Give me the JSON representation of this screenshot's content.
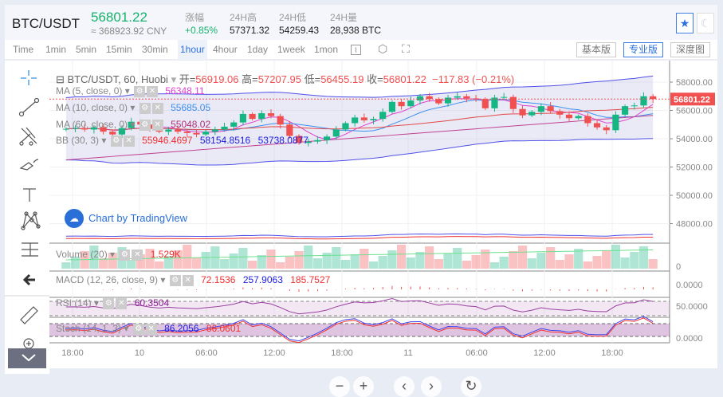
{
  "header": {
    "symbol": "BTC/USDT",
    "price": "56801.22",
    "cny": "≈ 368923.92 CNY",
    "stats": [
      {
        "label": "涨幅",
        "value": "+0.85%",
        "color": "#16b26c"
      },
      {
        "label": "24H高",
        "value": "57371.32"
      },
      {
        "label": "24H低",
        "value": "54259.43"
      },
      {
        "label": "24H量",
        "value": "28,938 BTC"
      }
    ],
    "favorite_icon": "star-icon",
    "theme_icon": "moon-icon"
  },
  "toolbar": {
    "intervals": [
      "Time",
      "1min",
      "5min",
      "15min",
      "30min",
      "1hour",
      "4hour",
      "1day",
      "1week",
      "1mon"
    ],
    "active": "1hour",
    "icons": [
      "indicator-icon",
      "settings-icon",
      "fullscreen-icon"
    ],
    "views": [
      "基本版",
      "专业版",
      "深度图"
    ],
    "active_view": "专业版"
  },
  "left_tools": [
    "crosshair-icon",
    "trend-line-icon",
    "pitchfork-icon",
    "brush-icon",
    "text-icon",
    "pattern-icon",
    "measure-icon",
    "back-arrow-icon",
    "ruler-icon",
    "zoom-in-icon",
    "chevron-down-icon"
  ],
  "legend": {
    "title": "BTC/USDT, 60, Huobi",
    "open_label": "开=",
    "open": "56919.06",
    "high_label": "高=",
    "high": "57207.95",
    "low_label": "低=",
    "low": "56455.19",
    "close_label": "收=",
    "close": "56801.22",
    "change": "−117.83 (−0.21%)"
  },
  "indicators": [
    {
      "name": "MA (5, close, 0)",
      "values": [
        "56348.11"
      ],
      "colors": [
        "#e040d0"
      ]
    },
    {
      "name": "MA (10, close, 0)",
      "values": [
        "55685.05"
      ],
      "colors": [
        "#3d8ef0"
      ]
    },
    {
      "name": "MA (60, close, 0)",
      "values": [
        "55048.02"
      ],
      "colors": [
        "#b0307a"
      ]
    },
    {
      "name": "BB (30, 3)",
      "values": [
        "55946.4697",
        "58154.8516",
        "53738.0877"
      ],
      "colors": [
        "#f03030",
        "#2020e0",
        "#2020e0"
      ]
    },
    {
      "name": "Volume (20)",
      "values": [
        "1.529K"
      ],
      "colors": [
        "#f03030"
      ]
    },
    {
      "name": "MACD (12, 26, close, 9)",
      "values": [
        "72.1536",
        "257.9063",
        "185.7527"
      ],
      "colors": [
        "#f03030",
        "#2020e0",
        "#f03030"
      ]
    },
    {
      "name": "RSI (14)",
      "values": [
        "60.3504"
      ],
      "colors": [
        "#8a2090"
      ]
    },
    {
      "name": "Stoch (14, 1, 3)",
      "values": [
        "86.2056",
        "86.0601"
      ],
      "colors": [
        "#2020e0",
        "#f03030"
      ]
    }
  ],
  "watermark": "Chart by TradingView",
  "nav_buttons": [
    "−",
    "+",
    "‹",
    "›",
    "↻"
  ],
  "colors": {
    "up": "#16b584",
    "down": "#f05050",
    "accent": "#2b6fe0"
  },
  "chart_data": {
    "type": "candlestick",
    "y_ticks": [
      "58000.00",
      "56000.00",
      "54000.00",
      "52000.00",
      "50000.00",
      "48000.00"
    ],
    "last_price_label": "56801.22",
    "x_ticks": [
      "18:00",
      "10",
      "06:00",
      "12:00",
      "18:00",
      "11",
      "06:00",
      "12:00",
      "18:00"
    ],
    "closes": [
      54700,
      54750,
      54650,
      54800,
      54500,
      54300,
      54750,
      55200,
      55000,
      54700,
      54500,
      54650,
      54500,
      54400,
      54300,
      54500,
      54650,
      54850,
      55150,
      55750,
      55400,
      55800,
      55600,
      55000,
      54200,
      53700,
      53800,
      53900,
      54150,
      54650,
      55100,
      55500,
      55300,
      55400,
      55900,
      56600,
      56300,
      56700,
      57000,
      56800,
      56500,
      56900,
      57000,
      56850,
      56800,
      56150,
      56900,
      56950,
      56100,
      55650,
      55900,
      56300,
      55950,
      55700,
      55450,
      55600,
      55100,
      54800,
      54600,
      55700,
      56300,
      56350,
      57000,
      56801.22
    ],
    "volume_axis": [
      "0"
    ],
    "macd_axis": [
      "0.0000"
    ],
    "rsi_axis": [
      "50.0000"
    ],
    "stoch_axis": [
      "0.0000"
    ]
  }
}
